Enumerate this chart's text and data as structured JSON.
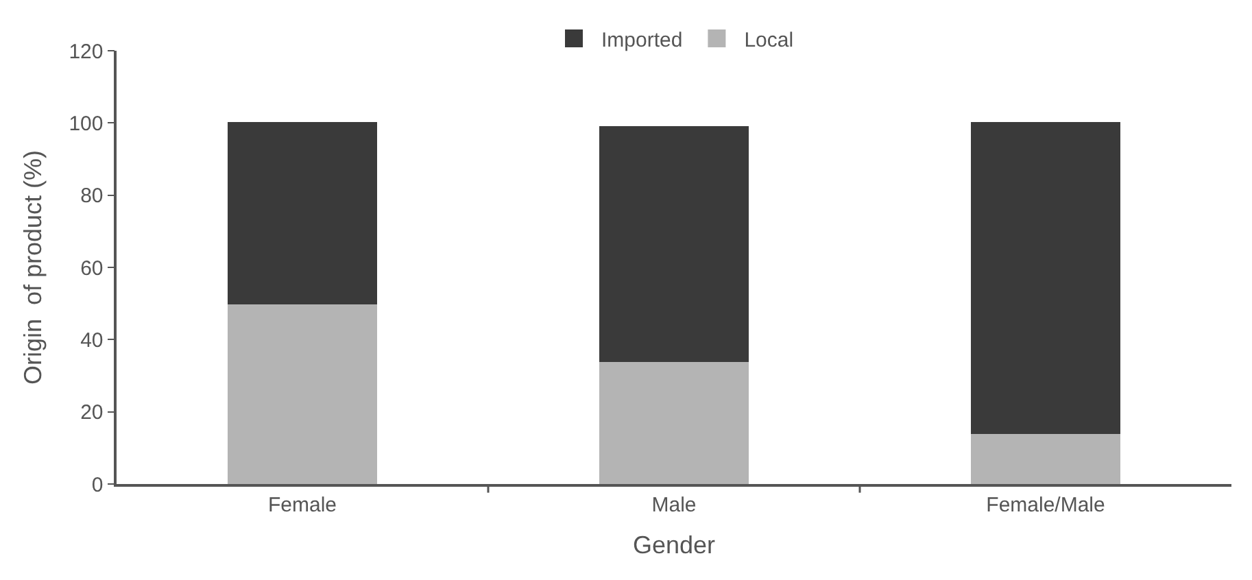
{
  "chart_data": {
    "type": "bar",
    "stacked": true,
    "xlabel": "Gender",
    "ylabel": "Origin  of product (%)",
    "categories": [
      "Female",
      "Male",
      "Female/Male"
    ],
    "series": [
      {
        "name": "Local",
        "color": "#b4b4b4",
        "values": [
          50,
          34,
          14
        ]
      },
      {
        "name": "Imported",
        "color": "#3a3a3a",
        "values": [
          50,
          65,
          86
        ]
      }
    ],
    "ylim": [
      0,
      120
    ],
    "yticks": [
      0,
      20,
      40,
      60,
      80,
      100,
      120
    ],
    "legend": "top"
  }
}
